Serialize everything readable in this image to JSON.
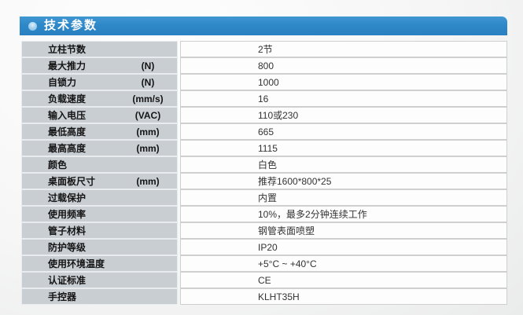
{
  "header": {
    "title": "技术参数",
    "bar_color": "#2e88c8",
    "bullet_color": "#a8d3ef",
    "text_color": "#ffffff"
  },
  "colors": {
    "label_cell_bg": "#c9ced3",
    "value_cell_border": "#cfcfcf",
    "label_text": "#141414",
    "value_text": "#333333"
  },
  "table": {
    "rows": [
      {
        "label": "立柱节数",
        "unit": "",
        "value": "2节"
      },
      {
        "label": "最大推力",
        "unit": "(N)",
        "value": "800"
      },
      {
        "label": "自锁力",
        "unit": "(N)",
        "value": "1000"
      },
      {
        "label": "负载速度",
        "unit": "(mm/s)",
        "value": "16"
      },
      {
        "label": "输入电压",
        "unit": "(VAC)",
        "value": "110或230"
      },
      {
        "label": "最低高度",
        "unit": "(mm)",
        "value": "665"
      },
      {
        "label": "最高高度",
        "unit": "(mm)",
        "value": "1115"
      },
      {
        "label": "颜色",
        "unit": "",
        "value": "白色"
      },
      {
        "label": "桌面板尺寸",
        "unit": "(mm)",
        "value": "推荐1600*800*25"
      },
      {
        "label": "过载保护",
        "unit": "",
        "value": "内置"
      },
      {
        "label": "使用频率",
        "unit": "",
        "value": "10%，最多2分钟连续工作"
      },
      {
        "label": "管子材料",
        "unit": "",
        "value": "钢管表面喷塑"
      },
      {
        "label": "防护等级",
        "unit": "",
        "value": "IP20"
      },
      {
        "label": "使用环境温度",
        "unit": "",
        "value": "+5°C ~ +40°C"
      },
      {
        "label": "认证标准",
        "unit": "",
        "value": "CE"
      },
      {
        "label": "手控器",
        "unit": "",
        "value": "KLHT35H"
      }
    ]
  }
}
